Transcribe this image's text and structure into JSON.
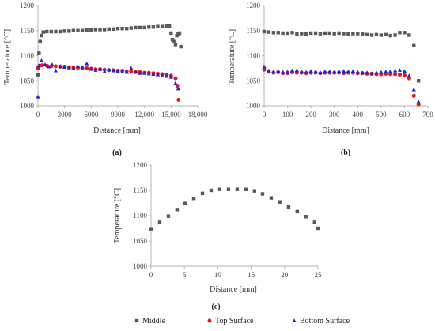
{
  "colors": {
    "middle": "#595959",
    "top": "#e8141c",
    "bottom": "#1f28c8"
  },
  "legend": [
    {
      "name": "Middle",
      "shape": "square",
      "color": "#595959"
    },
    {
      "name": "Top Surface",
      "shape": "circle",
      "color": "#e8141c"
    },
    {
      "name": "Bottom Surface",
      "shape": "triangle",
      "color": "#1f28c8"
    }
  ],
  "chart_data": [
    {
      "type": "scatter",
      "label": "(a)",
      "xlabel": "Distance [mm]",
      "ylabel": "Temperature [°C]",
      "xlim": [
        0,
        18000
      ],
      "ylim": [
        1000,
        1200
      ],
      "xticks": [
        0,
        3000,
        6000,
        9000,
        12000,
        15000,
        18000
      ],
      "xtick_labels": [
        "0",
        "3000",
        "6000",
        "9000",
        "12,000",
        "15,000",
        "18,000"
      ],
      "yticks": [
        1000,
        1050,
        1100,
        1150,
        1200
      ],
      "series": [
        {
          "name": "Middle",
          "shape": "square",
          "points": [
            [
              0,
              1062
            ],
            [
              120,
              1105
            ],
            [
              250,
              1128
            ],
            [
              400,
              1140
            ],
            [
              600,
              1147
            ],
            [
              1000,
              1148
            ],
            [
              1500,
              1148
            ],
            [
              2000,
              1148
            ],
            [
              2500,
              1148
            ],
            [
              3000,
              1149
            ],
            [
              3500,
              1149
            ],
            [
              4000,
              1150
            ],
            [
              4500,
              1150
            ],
            [
              5000,
              1150
            ],
            [
              5500,
              1151
            ],
            [
              6000,
              1151
            ],
            [
              6500,
              1152
            ],
            [
              7000,
              1152
            ],
            [
              7500,
              1152
            ],
            [
              8000,
              1153
            ],
            [
              8500,
              1153
            ],
            [
              9000,
              1154
            ],
            [
              9500,
              1154
            ],
            [
              10000,
              1154
            ],
            [
              10500,
              1155
            ],
            [
              11000,
              1156
            ],
            [
              11500,
              1156
            ],
            [
              12000,
              1156
            ],
            [
              12500,
              1157
            ],
            [
              13000,
              1157
            ],
            [
              13500,
              1158
            ],
            [
              14000,
              1158
            ],
            [
              14500,
              1159
            ],
            [
              14800,
              1159
            ],
            [
              15000,
              1145
            ],
            [
              15150,
              1132
            ],
            [
              15300,
              1128
            ],
            [
              15500,
              1122
            ],
            [
              15650,
              1140
            ],
            [
              15800,
              1143
            ],
            [
              15950,
              1145
            ],
            [
              16100,
              1118
            ]
          ]
        },
        {
          "name": "Top Surface",
          "shape": "circle",
          "points": [
            [
              0,
              1075
            ],
            [
              200,
              1080
            ],
            [
              500,
              1081
            ],
            [
              1000,
              1080
            ],
            [
              1500,
              1079
            ],
            [
              2000,
              1079
            ],
            [
              2500,
              1078
            ],
            [
              3000,
              1078
            ],
            [
              3500,
              1077
            ],
            [
              4000,
              1076
            ],
            [
              4500,
              1076
            ],
            [
              5000,
              1075
            ],
            [
              5500,
              1075
            ],
            [
              6000,
              1074
            ],
            [
              6500,
              1073
            ],
            [
              7000,
              1073
            ],
            [
              7500,
              1072
            ],
            [
              8000,
              1071
            ],
            [
              8500,
              1071
            ],
            [
              9000,
              1070
            ],
            [
              9500,
              1070
            ],
            [
              10000,
              1069
            ],
            [
              10500,
              1068
            ],
            [
              11000,
              1068
            ],
            [
              11500,
              1067
            ],
            [
              12000,
              1066
            ],
            [
              12500,
              1066
            ],
            [
              13000,
              1065
            ],
            [
              13500,
              1064
            ],
            [
              14000,
              1063
            ],
            [
              14500,
              1062
            ],
            [
              15000,
              1060
            ],
            [
              15500,
              1055
            ],
            [
              15700,
              1040
            ],
            [
              15850,
              1012
            ]
          ]
        },
        {
          "name": "Bottom Surface",
          "shape": "triangle",
          "points": [
            [
              0,
              1018
            ],
            [
              100,
              1080
            ],
            [
              400,
              1090
            ],
            [
              800,
              1082
            ],
            [
              1200,
              1078
            ],
            [
              1600,
              1082
            ],
            [
              2000,
              1070
            ],
            [
              2500,
              1079
            ],
            [
              3000,
              1077
            ],
            [
              3500,
              1076
            ],
            [
              4000,
              1075
            ],
            [
              4500,
              1079
            ],
            [
              5000,
              1077
            ],
            [
              5500,
              1084
            ],
            [
              6000,
              1073
            ],
            [
              6500,
              1071
            ],
            [
              7000,
              1073
            ],
            [
              7500,
              1068
            ],
            [
              8000,
              1072
            ],
            [
              8500,
              1070
            ],
            [
              9000,
              1069
            ],
            [
              9500,
              1068
            ],
            [
              10000,
              1067
            ],
            [
              10500,
              1075
            ],
            [
              11000,
              1067
            ],
            [
              11500,
              1065
            ],
            [
              12000,
              1065
            ],
            [
              12500,
              1064
            ],
            [
              13000,
              1063
            ],
            [
              13500,
              1062
            ],
            [
              14000,
              1060
            ],
            [
              14500,
              1059
            ],
            [
              15000,
              1057
            ],
            [
              15500,
              1045
            ],
            [
              15800,
              1034
            ]
          ]
        }
      ]
    },
    {
      "type": "scatter",
      "label": "(b)",
      "xlabel": "Distance [mm]",
      "ylabel": "Temperature [°C]",
      "xlim": [
        0,
        700
      ],
      "ylim": [
        1000,
        1200
      ],
      "xticks": [
        0,
        100,
        200,
        300,
        400,
        500,
        600,
        700
      ],
      "xtick_labels": [
        "0",
        "100",
        "200",
        "300",
        "400",
        "500",
        "600",
        "700"
      ],
      "yticks": [
        1000,
        1050,
        1100,
        1150,
        1200
      ],
      "series": [
        {
          "name": "Middle",
          "shape": "square",
          "points": [
            [
              0,
              1148
            ],
            [
              20,
              1147
            ],
            [
              40,
              1146
            ],
            [
              60,
              1146
            ],
            [
              80,
              1145
            ],
            [
              100,
              1145
            ],
            [
              120,
              1146
            ],
            [
              140,
              1143
            ],
            [
              160,
              1144
            ],
            [
              180,
              1143
            ],
            [
              200,
              1145
            ],
            [
              220,
              1145
            ],
            [
              240,
              1144
            ],
            [
              260,
              1145
            ],
            [
              280,
              1145
            ],
            [
              300,
              1144
            ],
            [
              320,
              1145
            ],
            [
              340,
              1144
            ],
            [
              360,
              1143
            ],
            [
              380,
              1144
            ],
            [
              400,
              1144
            ],
            [
              420,
              1143
            ],
            [
              440,
              1142
            ],
            [
              460,
              1141
            ],
            [
              480,
              1142
            ],
            [
              500,
              1141
            ],
            [
              520,
              1142
            ],
            [
              540,
              1140
            ],
            [
              560,
              1141
            ],
            [
              580,
              1146
            ],
            [
              600,
              1146
            ],
            [
              620,
              1141
            ],
            [
              640,
              1120
            ],
            [
              660,
              1050
            ]
          ]
        },
        {
          "name": "Top Surface",
          "shape": "circle",
          "points": [
            [
              0,
              1072
            ],
            [
              20,
              1068
            ],
            [
              40,
              1066
            ],
            [
              60,
              1067
            ],
            [
              80,
              1065
            ],
            [
              100,
              1065
            ],
            [
              120,
              1067
            ],
            [
              140,
              1066
            ],
            [
              160,
              1066
            ],
            [
              180,
              1065
            ],
            [
              200,
              1066
            ],
            [
              220,
              1066
            ],
            [
              240,
              1065
            ],
            [
              260,
              1066
            ],
            [
              280,
              1066
            ],
            [
              300,
              1066
            ],
            [
              320,
              1066
            ],
            [
              340,
              1065
            ],
            [
              360,
              1066
            ],
            [
              380,
              1066
            ],
            [
              400,
              1065
            ],
            [
              420,
              1065
            ],
            [
              440,
              1064
            ],
            [
              460,
              1064
            ],
            [
              480,
              1063
            ],
            [
              500,
              1063
            ],
            [
              520,
              1064
            ],
            [
              540,
              1063
            ],
            [
              560,
              1063
            ],
            [
              580,
              1062
            ],
            [
              600,
              1061
            ],
            [
              620,
              1055
            ],
            [
              640,
              1020
            ],
            [
              660,
              1003
            ]
          ]
        },
        {
          "name": "Bottom Surface",
          "shape": "triangle",
          "points": [
            [
              0,
              1078
            ],
            [
              20,
              1070
            ],
            [
              40,
              1068
            ],
            [
              60,
              1068
            ],
            [
              80,
              1067
            ],
            [
              100,
              1068
            ],
            [
              120,
              1070
            ],
            [
              140,
              1071
            ],
            [
              160,
              1068
            ],
            [
              180,
              1067
            ],
            [
              200,
              1069
            ],
            [
              220,
              1068
            ],
            [
              240,
              1066
            ],
            [
              260,
              1068
            ],
            [
              280,
              1068
            ],
            [
              300,
              1067
            ],
            [
              320,
              1069
            ],
            [
              340,
              1069
            ],
            [
              360,
              1068
            ],
            [
              380,
              1069
            ],
            [
              400,
              1067
            ],
            [
              420,
              1066
            ],
            [
              440,
              1066
            ],
            [
              460,
              1064
            ],
            [
              480,
              1066
            ],
            [
              500,
              1067
            ],
            [
              520,
              1068
            ],
            [
              540,
              1069
            ],
            [
              560,
              1070
            ],
            [
              580,
              1071
            ],
            [
              600,
              1069
            ],
            [
              620,
              1060
            ],
            [
              640,
              1032
            ],
            [
              660,
              1008
            ]
          ]
        }
      ]
    },
    {
      "type": "scatter",
      "label": "(c)",
      "xlabel": "Distance [mm]",
      "ylabel": "Temperature [°C]",
      "xlim": [
        0,
        25
      ],
      "ylim": [
        1000,
        1200
      ],
      "xticks": [
        0,
        5,
        10,
        15,
        20,
        25
      ],
      "xtick_labels": [
        "0",
        "5",
        "10",
        "15",
        "20",
        "25"
      ],
      "yticks": [
        1000,
        1050,
        1100,
        1150,
        1200
      ],
      "series": [
        {
          "name": "Middle",
          "shape": "square",
          "points": [
            [
              0,
              1074
            ],
            [
              1.3,
              1087
            ],
            [
              2.6,
              1099
            ],
            [
              3.9,
              1112
            ],
            [
              5.1,
              1124
            ],
            [
              6.4,
              1134
            ],
            [
              7.7,
              1144
            ],
            [
              9.0,
              1150
            ],
            [
              10.3,
              1152
            ],
            [
              11.6,
              1152
            ],
            [
              12.9,
              1152
            ],
            [
              14.2,
              1152
            ],
            [
              15.5,
              1149
            ],
            [
              16.7,
              1143
            ],
            [
              18.0,
              1135
            ],
            [
              19.3,
              1127
            ],
            [
              20.6,
              1117
            ],
            [
              21.9,
              1108
            ],
            [
              23.2,
              1098
            ],
            [
              24.5,
              1087
            ],
            [
              25,
              1075
            ]
          ]
        }
      ]
    }
  ]
}
